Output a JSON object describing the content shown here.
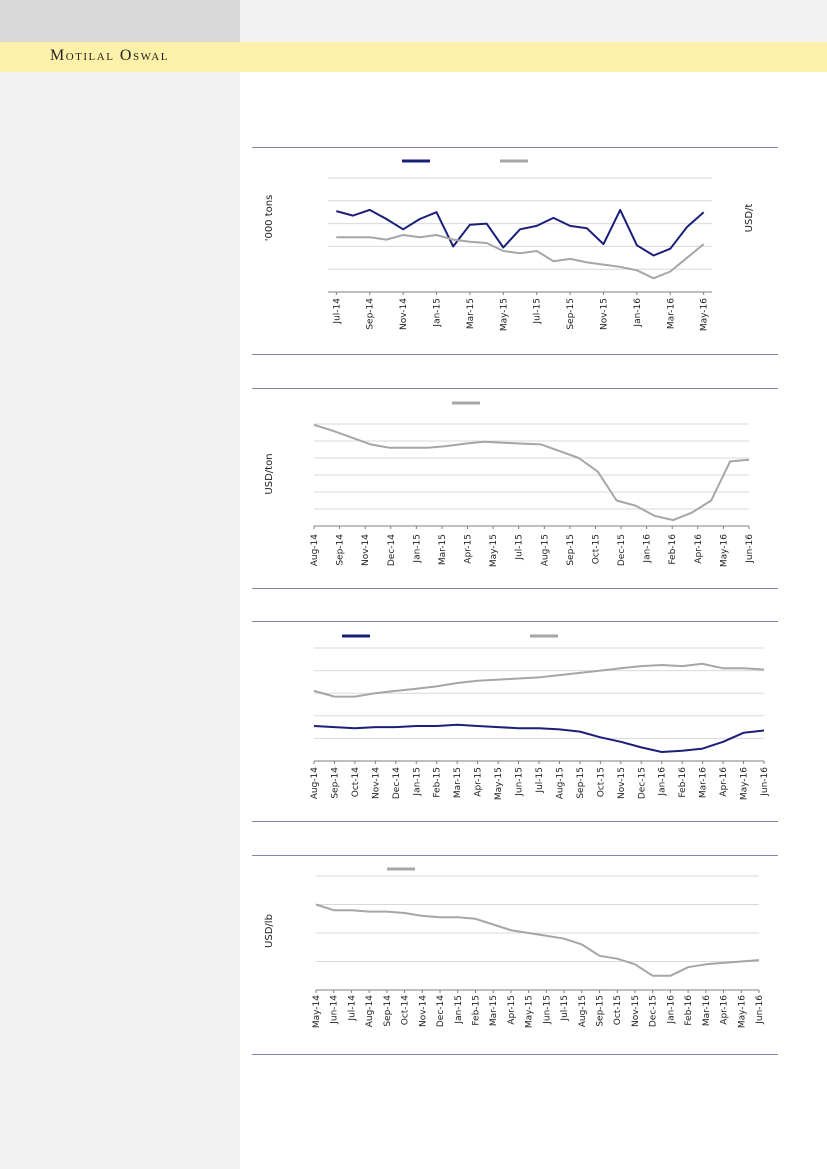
{
  "header": {
    "brand": "Motilal Oswal"
  },
  "colors": {
    "navy": "#1a1f7a",
    "gray": "#a6a6a6",
    "rule": "#7f86b3",
    "grid": "#d9d9d9"
  },
  "chart_data": [
    {
      "type": "line",
      "ylabel_left": "'000 tons",
      "ylabel_right": "USD/t",
      "x_tick_labels": [
        "Jul-14",
        "Sep-14",
        "Nov-14",
        "Jan-15",
        "Mar-15",
        "May-15",
        "Jul-15",
        "Sep-15",
        "Nov-15",
        "Jan-16",
        "Mar-16",
        "May-16"
      ],
      "x": [
        "Jul-14",
        "Aug-14",
        "Sep-14",
        "Oct-14",
        "Nov-14",
        "Dec-14",
        "Jan-15",
        "Feb-15",
        "Mar-15",
        "Apr-15",
        "May-15",
        "Jun-15",
        "Jul-15",
        "Aug-15",
        "Sep-15",
        "Oct-15",
        "Nov-15",
        "Dec-15",
        "Jan-16",
        "Feb-16",
        "Mar-16",
        "Apr-16",
        "May-16"
      ],
      "gridlines": 5,
      "series": [
        {
          "color": "navy",
          "values": [
            2.55,
            2.35,
            2.6,
            2.2,
            1.75,
            2.2,
            2.5,
            1.0,
            1.95,
            2.0,
            0.95,
            1.75,
            1.9,
            2.25,
            1.9,
            1.8,
            1.1,
            2.6,
            1.05,
            0.6,
            0.9,
            1.85,
            2.5
          ]
        },
        {
          "color": "gray",
          "values": [
            1.4,
            1.4,
            1.4,
            1.3,
            1.5,
            1.4,
            1.5,
            1.3,
            1.2,
            1.15,
            0.8,
            0.7,
            0.8,
            0.35,
            0.45,
            0.3,
            0.2,
            0.1,
            -0.05,
            -0.4,
            -0.1,
            0.5,
            1.1
          ]
        }
      ]
    },
    {
      "type": "line",
      "ylabel_left": "USD/ton",
      "x_tick_labels": [
        "Aug-14",
        "Sep-14",
        "Nov-14",
        "Dec-14",
        "Jan-15",
        "Mar-15",
        "Apr-15",
        "May-15",
        "Jul-15",
        "Aug-15",
        "Sep-15",
        "Oct-15",
        "Dec-15",
        "Jan-16",
        "Feb-16",
        "Apr-16",
        "May-16",
        "Jun-16"
      ],
      "x_index_range": [
        0,
        23
      ],
      "gridlines": 6,
      "series": [
        {
          "color": "gray",
          "points": [
            [
              0,
              5.95
            ],
            [
              1,
              5.6
            ],
            [
              2,
              5.2
            ],
            [
              3,
              4.8
            ],
            [
              4,
              4.6
            ],
            [
              5,
              4.6
            ],
            [
              6,
              4.6
            ],
            [
              7,
              4.7
            ],
            [
              8,
              4.85
            ],
            [
              9,
              4.95
            ],
            [
              10,
              4.9
            ],
            [
              11,
              4.85
            ],
            [
              12,
              4.8
            ],
            [
              13,
              4.4
            ],
            [
              14,
              4.0
            ],
            [
              15,
              3.2
            ],
            [
              16,
              1.5
            ],
            [
              17,
              1.2
            ],
            [
              18,
              0.6
            ],
            [
              19,
              0.35
            ],
            [
              20,
              0.8
            ],
            [
              21,
              1.5
            ],
            [
              22,
              3.8
            ],
            [
              23,
              3.9
            ]
          ]
        }
      ]
    },
    {
      "type": "line",
      "x_tick_labels": [
        "Aug-14",
        "Sep-14",
        "Oct-14",
        "Nov-14",
        "Dec-14",
        "Jan-15",
        "Feb-15",
        "Mar-15",
        "Apr-15",
        "May-15",
        "Jun-15",
        "Jul-15",
        "Aug-15",
        "Sep-15",
        "Oct-15",
        "Nov-15",
        "Dec-15",
        "Jan-16",
        "Feb-16",
        "Mar-16",
        "Apr-16",
        "May-16",
        "Jun-16"
      ],
      "x_index_range": [
        0,
        22
      ],
      "gridlines": 5,
      "series": [
        {
          "color": "navy",
          "points": [
            [
              0,
              1.3
            ],
            [
              1,
              1.25
            ],
            [
              2,
              1.2
            ],
            [
              3,
              1.25
            ],
            [
              4,
              1.25
            ],
            [
              5,
              1.3
            ],
            [
              6,
              1.3
            ],
            [
              7,
              1.35
            ],
            [
              8,
              1.3
            ],
            [
              9,
              1.25
            ],
            [
              10,
              1.2
            ],
            [
              11,
              1.2
            ],
            [
              12,
              1.15
            ],
            [
              13,
              1.05
            ],
            [
              14,
              0.8
            ],
            [
              15,
              0.6
            ],
            [
              16,
              0.35
            ],
            [
              17,
              0.15
            ],
            [
              18,
              0.2
            ],
            [
              19,
              0.3
            ],
            [
              20,
              0.6
            ],
            [
              21,
              1.0
            ],
            [
              22,
              1.1
            ]
          ]
        },
        {
          "color": "gray",
          "points": [
            [
              0,
              2.85
            ],
            [
              1,
              2.6
            ],
            [
              2,
              2.6
            ],
            [
              3,
              2.75
            ],
            [
              4,
              2.85
            ],
            [
              5,
              2.95
            ],
            [
              6,
              3.05
            ],
            [
              7,
              3.2
            ],
            [
              8,
              3.3
            ],
            [
              9,
              3.35
            ],
            [
              10,
              3.4
            ],
            [
              11,
              3.45
            ],
            [
              12,
              3.55
            ],
            [
              13,
              3.65
            ],
            [
              14,
              3.75
            ],
            [
              15,
              3.85
            ],
            [
              16,
              3.95
            ],
            [
              17,
              4.0
            ],
            [
              18,
              3.95
            ],
            [
              19,
              4.05
            ],
            [
              20,
              3.85
            ],
            [
              21,
              3.85
            ],
            [
              22,
              3.8
            ]
          ]
        }
      ]
    },
    {
      "type": "line",
      "ylabel_left": "USD/lb",
      "x_tick_labels": [
        "May-14",
        "Jun-14",
        "Jul-14",
        "Aug-14",
        "Sep-14",
        "Oct-14",
        "Nov-14",
        "Dec-14",
        "Jan-15",
        "Feb-15",
        "Mar-15",
        "Apr-15",
        "May-15",
        "Jun-15",
        "Jul-15",
        "Aug-15",
        "Sep-15",
        "Oct-15",
        "Nov-15",
        "Dec-15",
        "Jan-16",
        "Feb-16",
        "Mar-16",
        "Apr-16",
        "May-16",
        "Jun-16"
      ],
      "x_index_range": [
        0,
        25
      ],
      "gridlines": 4,
      "series": [
        {
          "color": "gray",
          "points": [
            [
              0,
              3.0
            ],
            [
              1,
              2.8
            ],
            [
              2,
              2.8
            ],
            [
              3,
              2.75
            ],
            [
              4,
              2.75
            ],
            [
              5,
              2.7
            ],
            [
              6,
              2.6
            ],
            [
              7,
              2.55
            ],
            [
              8,
              2.55
            ],
            [
              9,
              2.5
            ],
            [
              10,
              2.3
            ],
            [
              11,
              2.1
            ],
            [
              12,
              2.0
            ],
            [
              13,
              1.9
            ],
            [
              14,
              1.8
            ],
            [
              15,
              1.6
            ],
            [
              16,
              1.2
            ],
            [
              17,
              1.1
            ],
            [
              18,
              0.9
            ],
            [
              19,
              0.5
            ],
            [
              20,
              0.5
            ],
            [
              21,
              0.8
            ],
            [
              22,
              0.9
            ],
            [
              23,
              0.95
            ],
            [
              24,
              1.0
            ],
            [
              25,
              1.05
            ]
          ]
        }
      ]
    }
  ]
}
